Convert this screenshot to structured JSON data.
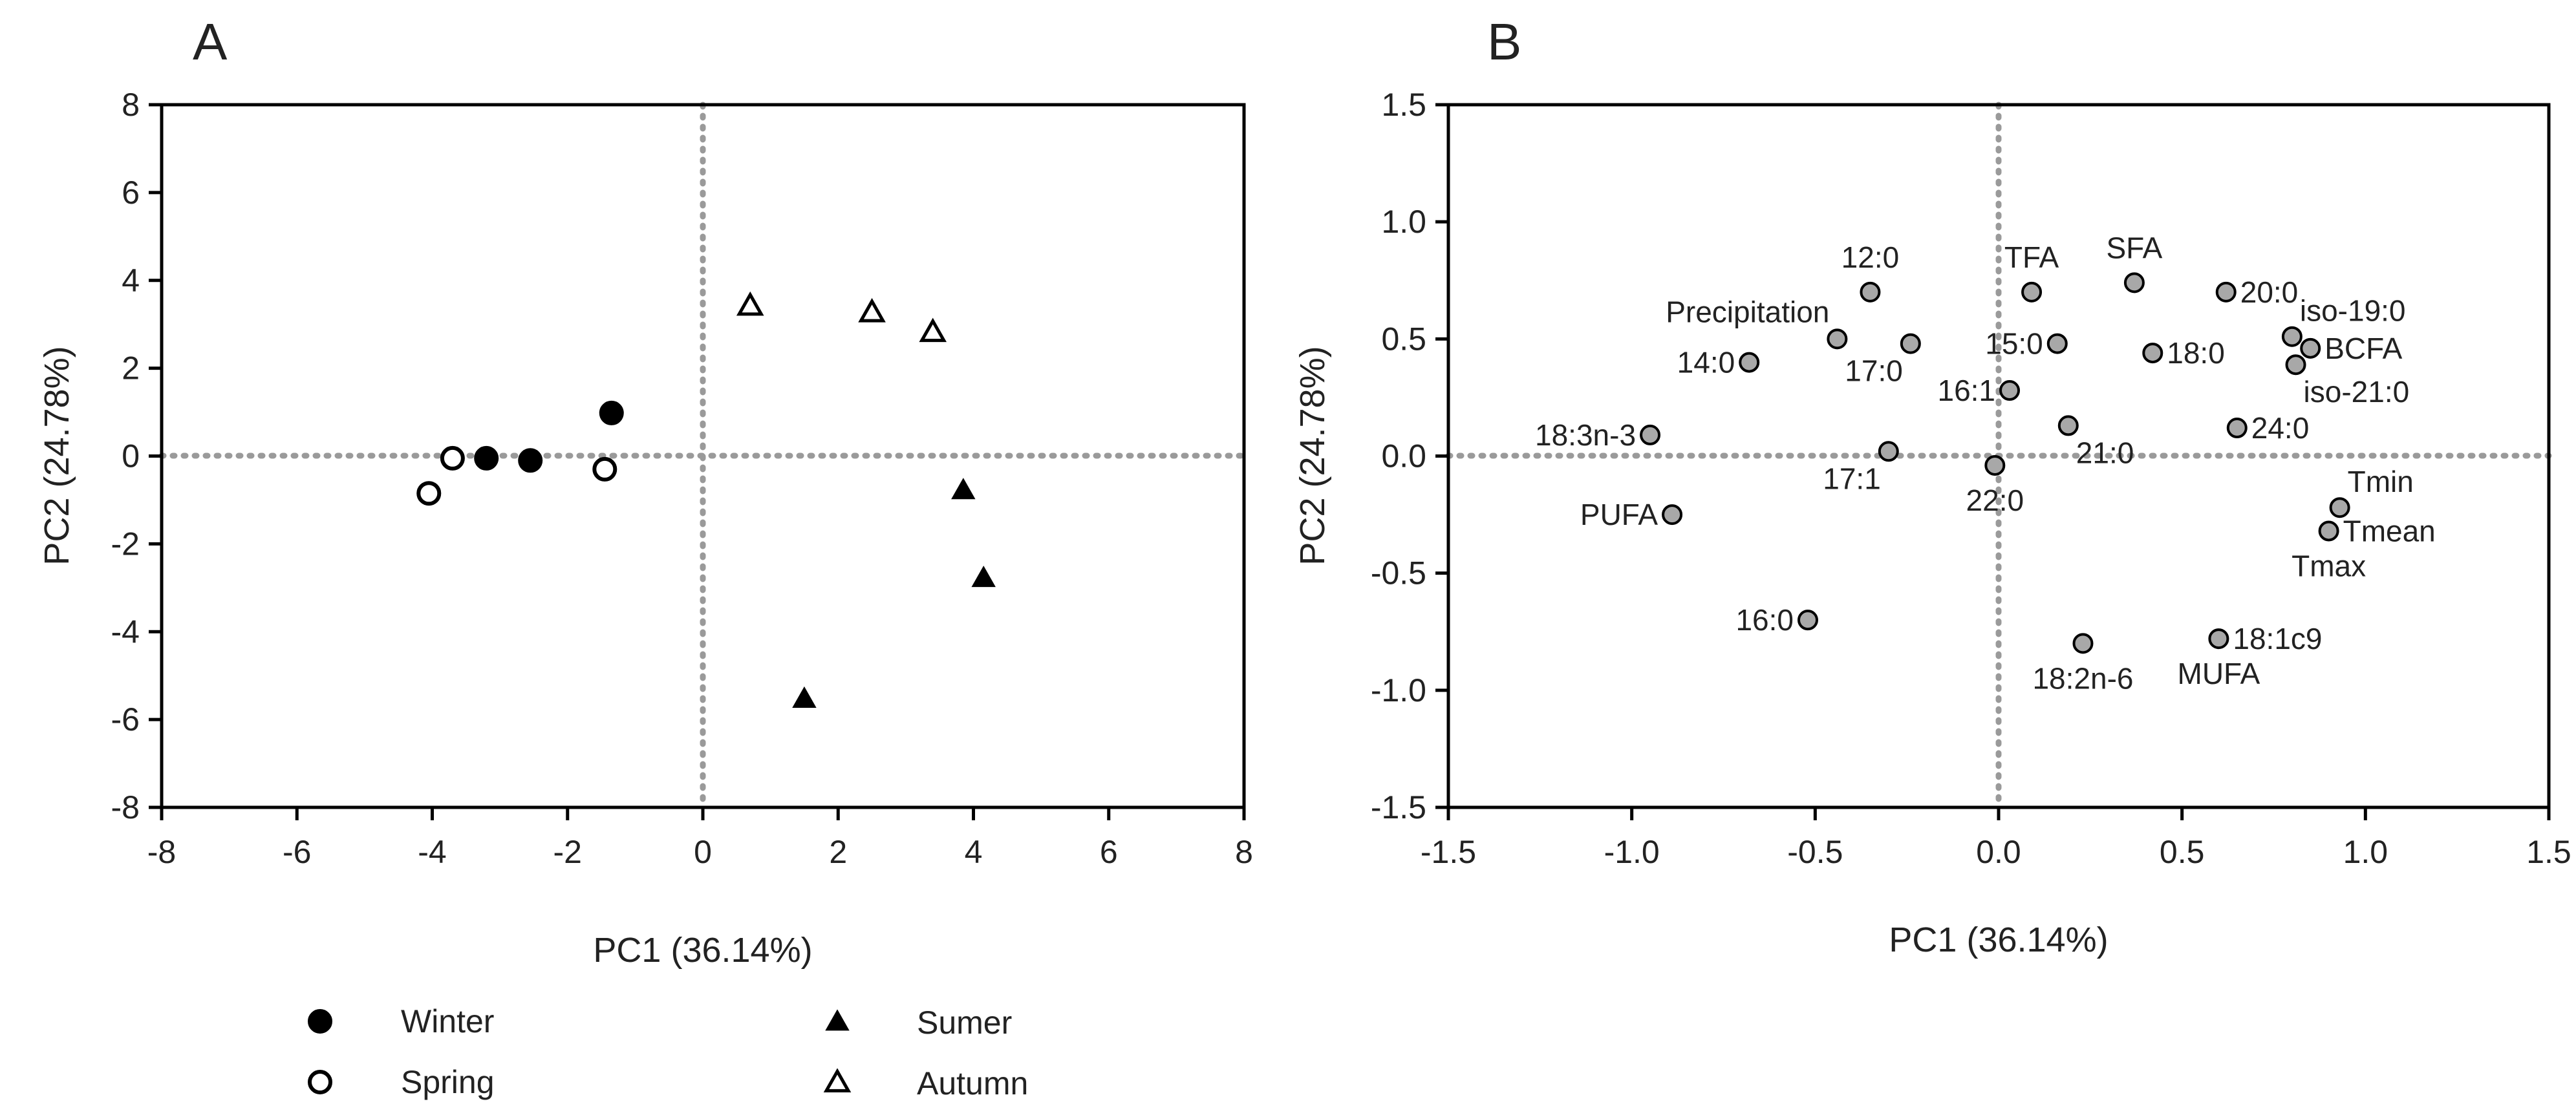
{
  "figure": {
    "panels": [
      "A",
      "B"
    ]
  },
  "chart_data": [
    {
      "type": "scatter",
      "panel": "A",
      "xlabel": "PC1 (36.14%)",
      "ylabel": "PC2 (24.78%)",
      "xlim": [
        -8,
        8
      ],
      "ylim": [
        -8,
        8
      ],
      "xticks": [
        -8,
        -6,
        -4,
        -2,
        0,
        2,
        4,
        6,
        8
      ],
      "yticks": [
        -8,
        -6,
        -4,
        -2,
        0,
        2,
        4,
        6,
        8
      ],
      "reference_lines": {
        "x": 0,
        "y": 0
      },
      "legend_position": "bottom",
      "series": [
        {
          "name": "Winter",
          "marker": "circle-filled",
          "points": [
            [
              -3.2,
              -0.05
            ],
            [
              -2.55,
              -0.1
            ],
            [
              -1.35,
              0.98
            ]
          ]
        },
        {
          "name": "Spring",
          "marker": "circle-open",
          "points": [
            [
              -3.7,
              -0.05
            ],
            [
              -4.05,
              -0.85
            ],
            [
              -1.45,
              -0.3
            ]
          ]
        },
        {
          "name": "Sumer",
          "marker": "triangle-filled",
          "points": [
            [
              3.85,
              -0.8
            ],
            [
              4.15,
              -2.8
            ],
            [
              1.5,
              -5.55
            ]
          ]
        },
        {
          "name": "Autumn",
          "marker": "triangle-open",
          "points": [
            [
              0.7,
              3.4
            ],
            [
              2.5,
              3.25
            ],
            [
              3.4,
              2.8
            ]
          ]
        }
      ]
    },
    {
      "type": "scatter",
      "panel": "B",
      "xlabel": "PC1 (36.14%)",
      "ylabel": "PC2 (24.78%)",
      "xlim": [
        -1.5,
        1.5
      ],
      "ylim": [
        -1.5,
        1.5
      ],
      "xticks": [
        "-1.5",
        "-1.0",
        "-0.5",
        "0.0",
        "0.5",
        "1.0",
        "1.5"
      ],
      "yticks": [
        "-1.5",
        "-1.0",
        "-0.5",
        "0.0",
        "0.5",
        "1.0",
        "1.5"
      ],
      "reference_lines": {
        "x": 0,
        "y": 0
      },
      "marker_color": "#a8a8a8",
      "points": [
        {
          "label": "12:0",
          "x": -0.35,
          "y": 0.7,
          "anchor": "n"
        },
        {
          "label": "TFA",
          "x": 0.09,
          "y": 0.7,
          "anchor": "n"
        },
        {
          "label": "SFA",
          "x": 0.37,
          "y": 0.74,
          "anchor": "n"
        },
        {
          "label": "20:0",
          "x": 0.62,
          "y": 0.7,
          "anchor": "e"
        },
        {
          "label": "Precipitation",
          "x": -0.44,
          "y": 0.5,
          "anchor": "nw"
        },
        {
          "label": "17:0",
          "x": -0.24,
          "y": 0.48,
          "anchor": "sw"
        },
        {
          "label": "14:0",
          "x": -0.68,
          "y": 0.4,
          "anchor": "w"
        },
        {
          "label": "15:0",
          "x": 0.16,
          "y": 0.48,
          "anchor": "w"
        },
        {
          "label": "18:0",
          "x": 0.42,
          "y": 0.44,
          "anchor": "e"
        },
        {
          "label": "iso-19:0",
          "x": 0.8,
          "y": 0.51,
          "anchor": "ne"
        },
        {
          "label": "BCFA",
          "x": 0.85,
          "y": 0.46,
          "anchor": "e"
        },
        {
          "label": "iso-21:0",
          "x": 0.81,
          "y": 0.39,
          "anchor": "se"
        },
        {
          "label": "16:1",
          "x": 0.03,
          "y": 0.28,
          "anchor": "w"
        },
        {
          "label": "21:0",
          "x": 0.19,
          "y": 0.13,
          "anchor": "se"
        },
        {
          "label": "24:0",
          "x": 0.65,
          "y": 0.12,
          "anchor": "e"
        },
        {
          "label": "18:3n-3",
          "x": -0.95,
          "y": 0.09,
          "anchor": "w"
        },
        {
          "label": "17:1",
          "x": -0.3,
          "y": 0.02,
          "anchor": "sw"
        },
        {
          "label": "22:0",
          "x": -0.01,
          "y": -0.04,
          "anchor": "s"
        },
        {
          "label": "PUFA",
          "x": -0.89,
          "y": -0.25,
          "anchor": "w"
        },
        {
          "label": "Tmin",
          "x": 0.93,
          "y": -0.22,
          "anchor": "ne"
        },
        {
          "label": "Tmean",
          "x": 0.9,
          "y": -0.32,
          "anchor": "e"
        },
        {
          "label": "Tmax",
          "x": 0.9,
          "y": -0.32,
          "anchor": "s"
        },
        {
          "label": "16:0",
          "x": -0.52,
          "y": -0.7,
          "anchor": "w"
        },
        {
          "label": "18:1c9",
          "x": 0.6,
          "y": -0.78,
          "anchor": "e"
        },
        {
          "label": "MUFA",
          "x": 0.6,
          "y": -0.78,
          "anchor": "s"
        },
        {
          "label": "18:2n-6",
          "x": 0.23,
          "y": -0.8,
          "anchor": "s"
        }
      ]
    }
  ]
}
